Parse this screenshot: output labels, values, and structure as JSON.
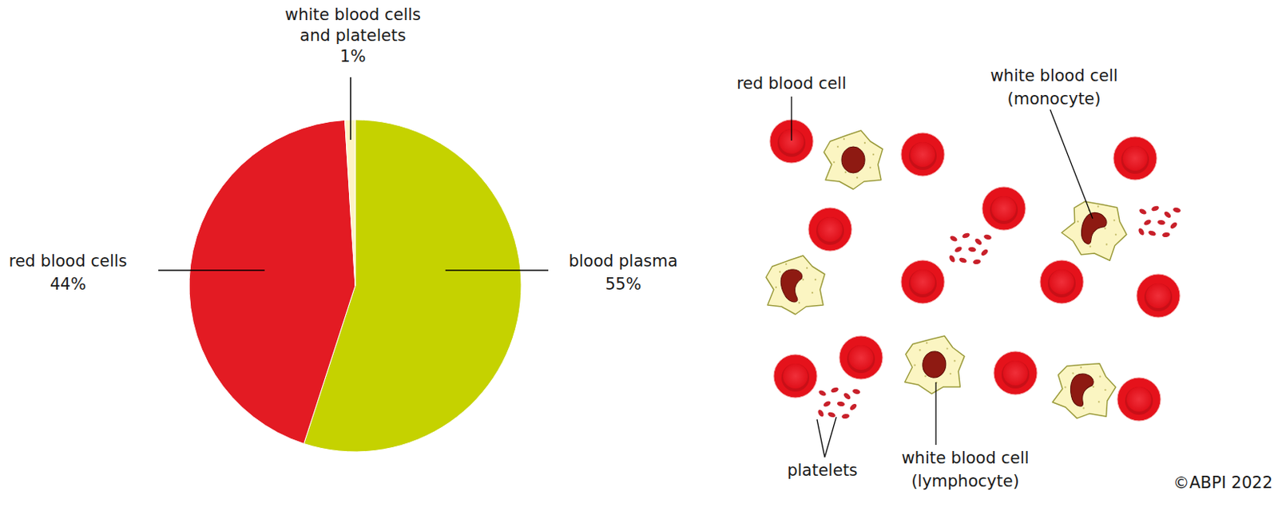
{
  "chart_data": {
    "type": "pie",
    "categories": [
      "blood plasma",
      "red blood cells",
      "white blood cells and platelets"
    ],
    "values": [
      55,
      44,
      1
    ],
    "value_labels": [
      "55%",
      "44%",
      "1%"
    ],
    "colors": [
      "#c5d200",
      "#e31b23",
      "#fdf3c4"
    ],
    "data_labels": true
  },
  "diagram": {
    "labels": [
      {
        "lines": [
          "red blood cell"
        ]
      },
      {
        "lines": [
          "white blood cell",
          "(monocyte)"
        ]
      },
      {
        "lines": [
          "platelets"
        ]
      },
      {
        "lines": [
          "white blood cell",
          "(lymphocyte)"
        ]
      }
    ],
    "credit": "©ABPI 2022"
  }
}
